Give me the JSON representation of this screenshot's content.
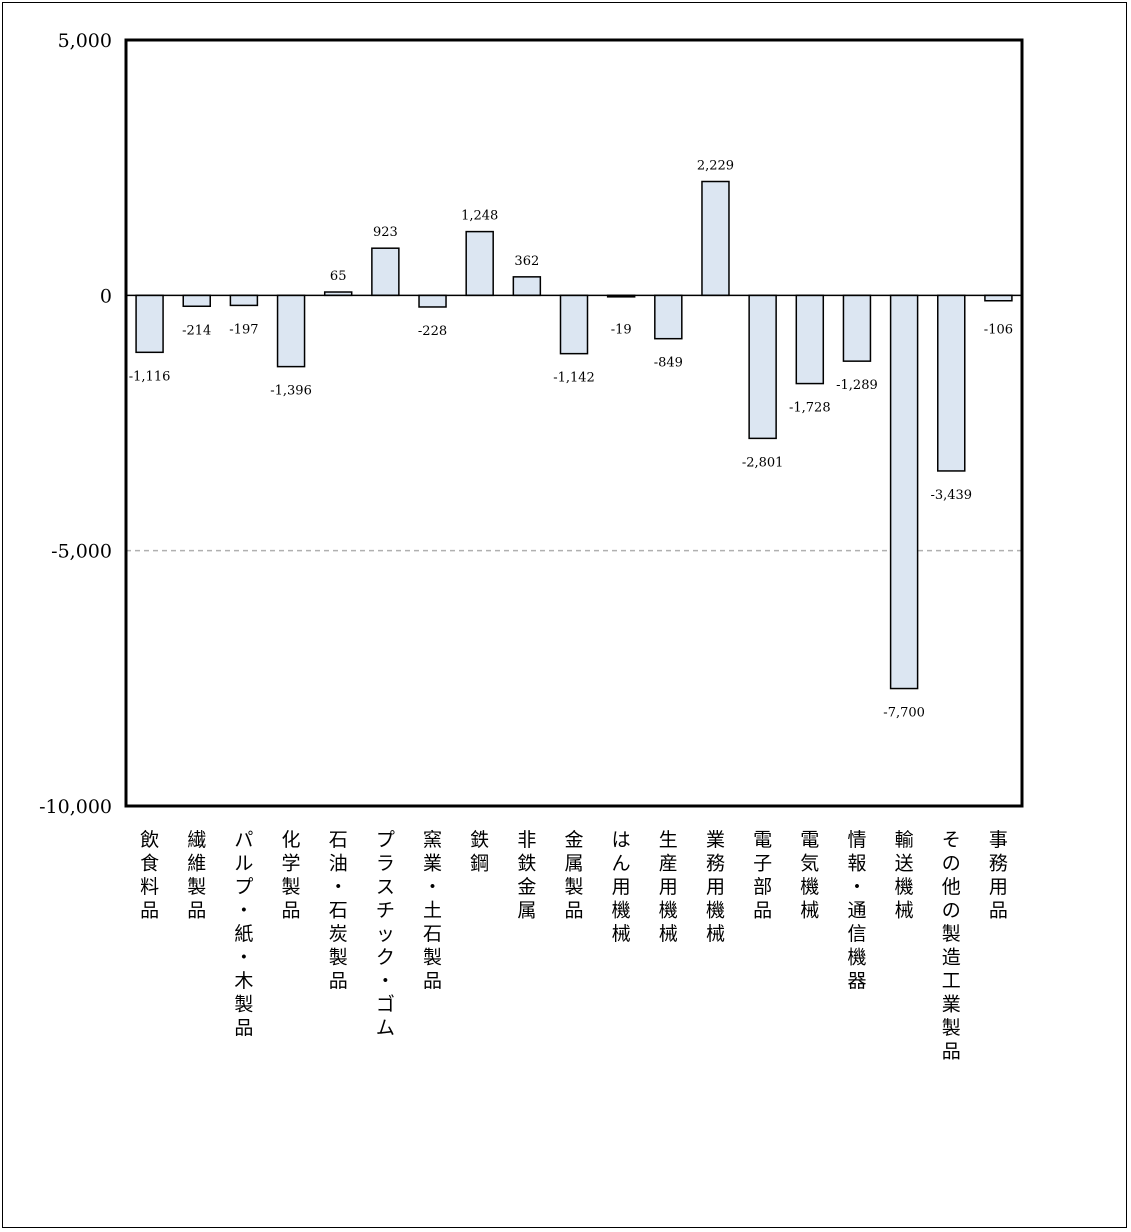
{
  "chart_data": {
    "type": "bar",
    "title": "",
    "xlabel": "",
    "ylabel": "",
    "ylim": [
      -10000,
      5000
    ],
    "yticks": [
      5000,
      0,
      -5000,
      -10000
    ],
    "ytick_labels": [
      "5,000",
      "0",
      "-5,000",
      "-10,000"
    ],
    "gridline_at": -5000,
    "grid": "dashed line at -5,000 only",
    "legend": "none",
    "categories": [
      "飲食料品",
      "繊維製品",
      "パルプ・紙・木製品",
      "化学製品",
      "石油・石炭製品",
      "プラスチック・ゴム",
      "窯業・土石製品",
      "鉄鋼",
      "非鉄金属",
      "金属製品",
      "はん用機械",
      "生産用機械",
      "業務用機械",
      "電子部品",
      "電気機械",
      "情報・通信機器",
      "輸送機械",
      "その他の製造工業製品",
      "事務用品"
    ],
    "values": [
      -1116,
      -214,
      -197,
      -1396,
      65,
      923,
      -228,
      1248,
      362,
      -1142,
      -19,
      -849,
      2229,
      -2801,
      -1728,
      -1289,
      -7700,
      -3439,
      -106
    ],
    "value_labels": [
      "-1,116",
      "-214",
      "-197",
      "-1,396",
      "65",
      "923",
      "-228",
      "1,248",
      "362",
      "-1,142",
      "-19",
      "-849",
      "2,229",
      "-2,801",
      "-1,728",
      "-1,289",
      "-7,700",
      "-3,439",
      "-106"
    ],
    "colors": {
      "bar_fill": "#dce6f2",
      "bar_stroke": "#000000",
      "grid": "#b0b0b0"
    }
  }
}
